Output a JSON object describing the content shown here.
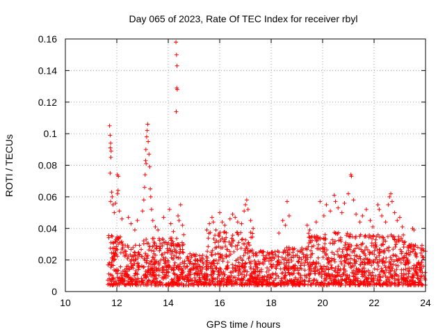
{
  "chart_data": {
    "type": "scatter",
    "title": "Day 065 of 2023, Rate Of TEC Index for receiver rbyl",
    "xlabel": "GPS time / hours",
    "ylabel": "ROTI / TECUs",
    "xlim": [
      10,
      24
    ],
    "ylim": [
      0,
      0.16
    ],
    "grid": true,
    "marker": "+",
    "color": "#ff0000",
    "x_ticks": [
      "10",
      "12",
      "14",
      "16",
      "18",
      "20",
      "22",
      "24"
    ],
    "y_ticks": [
      "0",
      "0.02",
      "0.04",
      "0.06",
      "0.08",
      "0.1",
      "0.12",
      "0.14",
      "0.16"
    ],
    "x_tick_values": [
      10,
      12,
      14,
      16,
      18,
      20,
      22,
      24
    ],
    "y_tick_values": [
      0,
      0.02,
      0.04,
      0.06,
      0.08,
      0.1,
      0.12,
      0.14,
      0.16
    ],
    "series": [
      {
        "name": "ROTI",
        "points": [
          [
            11.72,
            0.105
          ],
          [
            11.74,
            0.099
          ],
          [
            11.76,
            0.094
          ],
          [
            11.75,
            0.091
          ],
          [
            11.78,
            0.089
          ],
          [
            11.77,
            0.085
          ],
          [
            11.74,
            0.075
          ],
          [
            11.8,
            0.063
          ],
          [
            11.82,
            0.06
          ],
          [
            11.76,
            0.057
          ],
          [
            11.85,
            0.055
          ],
          [
            11.9,
            0.05
          ],
          [
            11.95,
            0.056
          ],
          [
            12.02,
            0.074
          ],
          [
            12.06,
            0.073
          ],
          [
            12.05,
            0.064
          ],
          [
            12.03,
            0.062
          ],
          [
            12.1,
            0.051
          ],
          [
            12.2,
            0.046
          ],
          [
            12.45,
            0.047
          ],
          [
            12.55,
            0.043
          ],
          [
            12.7,
            0.039
          ],
          [
            12.8,
            0.045
          ],
          [
            13.0,
            0.051
          ],
          [
            13.05,
            0.058
          ],
          [
            13.08,
            0.066
          ],
          [
            13.1,
            0.074
          ],
          [
            13.12,
            0.083
          ],
          [
            13.14,
            0.081
          ],
          [
            13.13,
            0.09
          ],
          [
            13.16,
            0.098
          ],
          [
            13.18,
            0.102
          ],
          [
            13.2,
            0.106
          ],
          [
            13.22,
            0.095
          ],
          [
            13.25,
            0.087
          ],
          [
            13.28,
            0.079
          ],
          [
            13.3,
            0.065
          ],
          [
            13.32,
            0.06
          ],
          [
            13.35,
            0.052
          ],
          [
            13.4,
            0.045
          ],
          [
            13.5,
            0.041
          ],
          [
            13.6,
            0.039
          ],
          [
            13.82,
            0.047
          ],
          [
            14.05,
            0.052
          ],
          [
            14.1,
            0.043
          ],
          [
            14.2,
            0.038
          ],
          [
            14.3,
            0.158
          ],
          [
            14.32,
            0.15
          ],
          [
            14.34,
            0.143
          ],
          [
            14.33,
            0.129
          ],
          [
            14.35,
            0.128
          ],
          [
            14.31,
            0.114
          ],
          [
            14.38,
            0.048
          ],
          [
            14.42,
            0.045
          ],
          [
            14.48,
            0.055
          ],
          [
            14.55,
            0.042
          ],
          [
            14.6,
            0.036
          ],
          [
            15.5,
            0.039
          ],
          [
            15.6,
            0.043
          ],
          [
            15.7,
            0.047
          ],
          [
            15.75,
            0.044
          ],
          [
            15.85,
            0.039
          ],
          [
            16.0,
            0.05
          ],
          [
            16.1,
            0.044
          ],
          [
            16.2,
            0.042
          ],
          [
            16.4,
            0.046
          ],
          [
            16.5,
            0.049
          ],
          [
            16.6,
            0.047
          ],
          [
            16.7,
            0.044
          ],
          [
            16.85,
            0.043
          ],
          [
            16.95,
            0.051
          ],
          [
            17.0,
            0.055
          ],
          [
            17.05,
            0.058
          ],
          [
            17.1,
            0.052
          ],
          [
            17.2,
            0.045
          ],
          [
            17.3,
            0.04
          ],
          [
            18.3,
            0.037
          ],
          [
            18.45,
            0.045
          ],
          [
            18.55,
            0.042
          ],
          [
            18.62,
            0.057
          ],
          [
            18.7,
            0.048
          ],
          [
            19.4,
            0.042
          ],
          [
            19.5,
            0.039
          ],
          [
            19.75,
            0.044
          ],
          [
            19.9,
            0.057
          ],
          [
            20.05,
            0.048
          ],
          [
            20.15,
            0.055
          ],
          [
            20.3,
            0.051
          ],
          [
            20.45,
            0.061
          ],
          [
            20.5,
            0.057
          ],
          [
            20.6,
            0.053
          ],
          [
            20.75,
            0.05
          ],
          [
            20.85,
            0.056
          ],
          [
            21.0,
            0.062
          ],
          [
            21.1,
            0.074
          ],
          [
            21.12,
            0.073
          ],
          [
            21.2,
            0.058
          ],
          [
            21.3,
            0.049
          ],
          [
            21.45,
            0.044
          ],
          [
            21.55,
            0.048
          ],
          [
            21.7,
            0.052
          ],
          [
            21.85,
            0.045
          ],
          [
            21.95,
            0.041
          ],
          [
            22.15,
            0.055
          ],
          [
            22.2,
            0.052
          ],
          [
            22.3,
            0.048
          ],
          [
            22.45,
            0.044
          ],
          [
            22.55,
            0.055
          ],
          [
            22.6,
            0.06
          ],
          [
            22.65,
            0.062
          ],
          [
            22.7,
            0.057
          ],
          [
            22.8,
            0.05
          ],
          [
            22.9,
            0.045
          ],
          [
            23.0,
            0.047
          ],
          [
            23.1,
            0.041
          ],
          [
            23.5,
            0.04
          ],
          [
            23.55,
            0.039
          ],
          [
            23.7,
            0.028
          ],
          [
            23.9,
            0.027
          ]
        ]
      }
    ]
  }
}
